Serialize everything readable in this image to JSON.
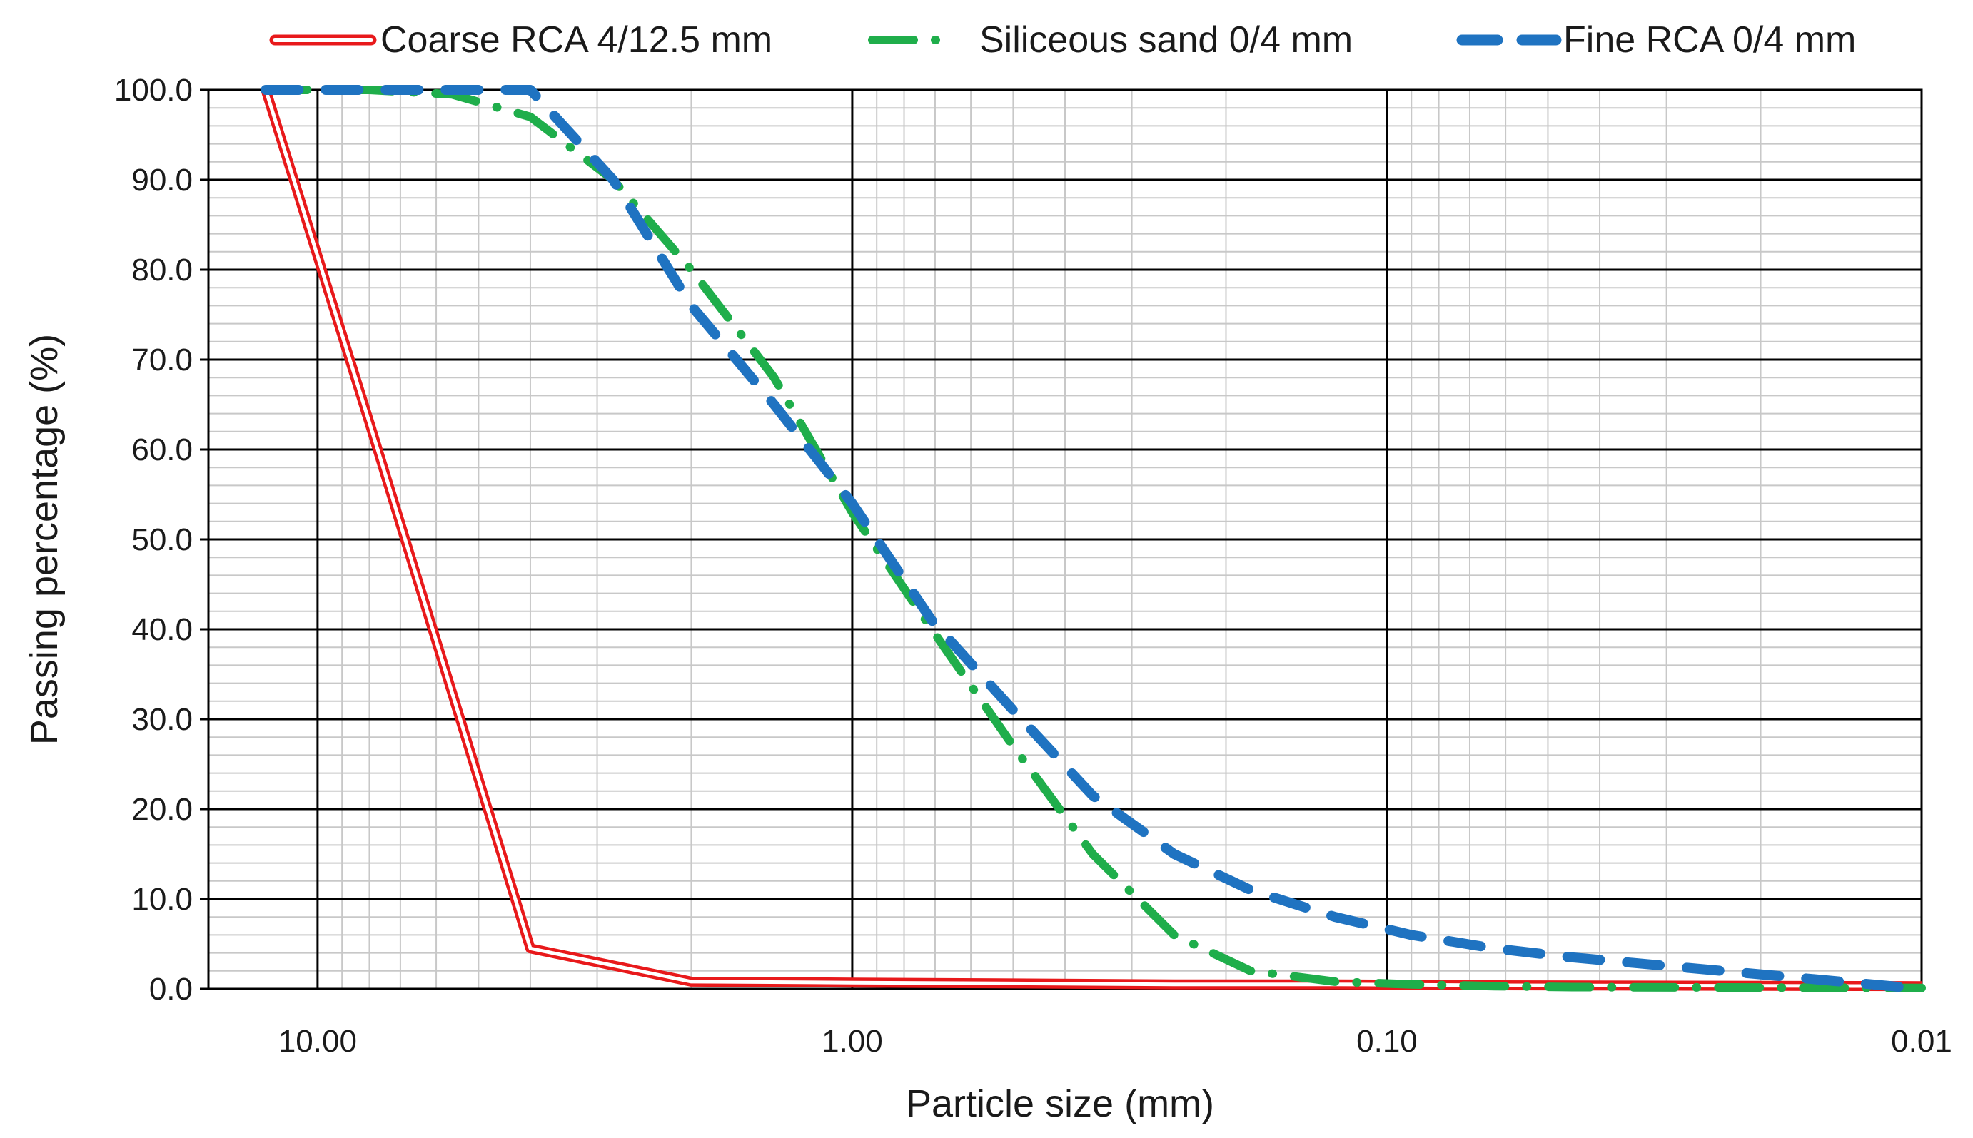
{
  "chart_data": {
    "type": "line",
    "title": "",
    "xlabel": "Particle size (mm)",
    "ylabel": "Passing percentage (%)",
    "x_scale": "log",
    "x_reversed": true,
    "xlim": [
      16,
      0.01
    ],
    "ylim": [
      0,
      100
    ],
    "grid": true,
    "legend_position": "top",
    "x_ticks": [
      {
        "value": 10,
        "label": "10.00"
      },
      {
        "value": 1,
        "label": "1.00"
      },
      {
        "value": 0.1,
        "label": "0.10"
      },
      {
        "value": 0.01,
        "label": "0.01"
      }
    ],
    "y_ticks": [
      {
        "value": 0,
        "label": "0.0"
      },
      {
        "value": 10,
        "label": "10.0"
      },
      {
        "value": 20,
        "label": "20.0"
      },
      {
        "value": 30,
        "label": "30.0"
      },
      {
        "value": 40,
        "label": "40.0"
      },
      {
        "value": 50,
        "label": "50.0"
      },
      {
        "value": 60,
        "label": "60.0"
      },
      {
        "value": 70,
        "label": "70.0"
      },
      {
        "value": 80,
        "label": "80.0"
      },
      {
        "value": 90,
        "label": "90.0"
      },
      {
        "value": 100,
        "label": "100.0"
      }
    ],
    "series": [
      {
        "name": "Coarse RCA 4/12.5 mm",
        "color": "#e8191b",
        "style": "double",
        "x": [
          12.5,
          8,
          4,
          2,
          1,
          0.5,
          0.25,
          0.125,
          0.063,
          0.01
        ],
        "y": [
          100,
          63,
          4.5,
          0.8,
          0.7,
          0.6,
          0.5,
          0.5,
          0.4,
          0.3
        ]
      },
      {
        "name": "Siliceous sand 0/4 mm",
        "color": "#1fae4b",
        "style": "dashdot",
        "x": [
          12.5,
          8,
          5.6,
          4,
          2.8,
          2,
          1.4,
          1,
          0.71,
          0.5,
          0.355,
          0.25,
          0.18,
          0.125,
          0.09,
          0.063,
          0.045,
          0.01
        ],
        "y": [
          100,
          100,
          99.5,
          97,
          90,
          80,
          68,
          53,
          40,
          27,
          15,
          6,
          2,
          0.8,
          0.5,
          0.3,
          0.2,
          0.1
        ]
      },
      {
        "name": "Fine RCA 0/4 mm",
        "color": "#1f73c1",
        "style": "dashed",
        "x": [
          12.5,
          8,
          5.6,
          4,
          2.8,
          2,
          1.4,
          1,
          0.71,
          0.5,
          0.355,
          0.25,
          0.18,
          0.125,
          0.09,
          0.063,
          0.045,
          0.01
        ],
        "y": [
          100,
          100,
          100,
          100,
          90,
          76,
          65,
          54,
          41,
          31,
          21.5,
          15,
          11,
          8,
          6,
          4.5,
          3.5,
          0
        ]
      }
    ]
  }
}
